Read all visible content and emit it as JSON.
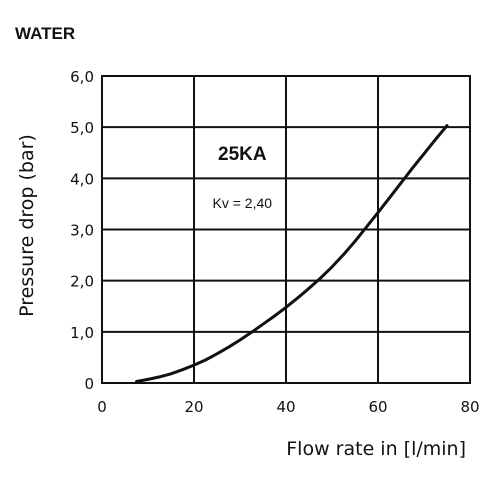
{
  "header": {
    "label": "WATER"
  },
  "chart_data": {
    "type": "line",
    "title": "",
    "xlabel": "Flow rate in [l/min]",
    "ylabel": "Pressure drop (bar)",
    "xlim": [
      0,
      80
    ],
    "ylim": [
      0,
      6
    ],
    "x_ticks": [
      0,
      20,
      40,
      60,
      80
    ],
    "x_tick_labels": [
      "0",
      "20",
      "40",
      "60",
      "80"
    ],
    "y_ticks": [
      0,
      1,
      2,
      3,
      4,
      5,
      6
    ],
    "y_tick_labels": [
      "0",
      "1,0",
      "2,0",
      "3,0",
      "4,0",
      "5,0",
      "6,0"
    ],
    "grid": true,
    "annotations": {
      "model": "25KA",
      "kv": "Kv = 2,40"
    },
    "series": [
      {
        "x": [
          7.5,
          10,
          12.5,
          15,
          17.5,
          20,
          22.5,
          25,
          27.5,
          30,
          32.5,
          35,
          37.5,
          40,
          42.5,
          45,
          47.5,
          50,
          52.5,
          55,
          57.5,
          60,
          62.5,
          65,
          67.5,
          70,
          72.5,
          75
        ],
        "y": [
          0.03,
          0.07,
          0.12,
          0.18,
          0.26,
          0.35,
          0.45,
          0.57,
          0.7,
          0.84,
          0.99,
          1.15,
          1.31,
          1.48,
          1.66,
          1.85,
          2.05,
          2.27,
          2.51,
          2.77,
          3.05,
          3.33,
          3.62,
          3.91,
          4.2,
          4.48,
          4.76,
          5.03
        ],
        "color": "#111111"
      }
    ]
  }
}
